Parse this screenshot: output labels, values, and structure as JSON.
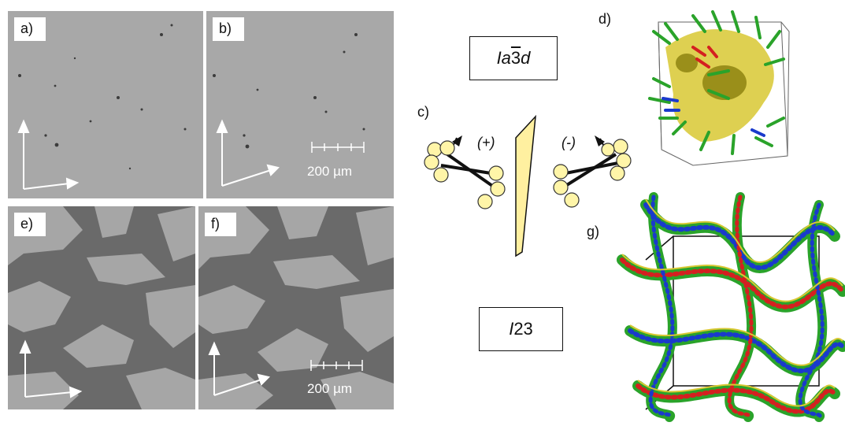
{
  "panels": {
    "a": {
      "label": "a)"
    },
    "b": {
      "label": "b)",
      "scale_text": "200 µm"
    },
    "c": {
      "label": "c)",
      "plus": "(+)",
      "minus": "(-)"
    },
    "d": {
      "label": "d)"
    },
    "e": {
      "label": "e)"
    },
    "f": {
      "label": "f)",
      "scale_text": "200 µm"
    },
    "g": {
      "label": "g)"
    }
  },
  "phases": {
    "top_prefix": "Ia",
    "top_digit": "3",
    "top_suffix": "d",
    "bottom_italic": "I",
    "bottom_rest": "23"
  },
  "colors": {
    "micrograph_light": "#a8a8a8",
    "micrograph_dark": "#6a6a6a",
    "sphere_fill": "#fff5a8",
    "mirror_fill": "#fff0a0",
    "helix_green": "#2aa32a",
    "surface_yellow": "#d8c832",
    "accent_red": "#d42020",
    "accent_blue": "#1a3acc"
  }
}
